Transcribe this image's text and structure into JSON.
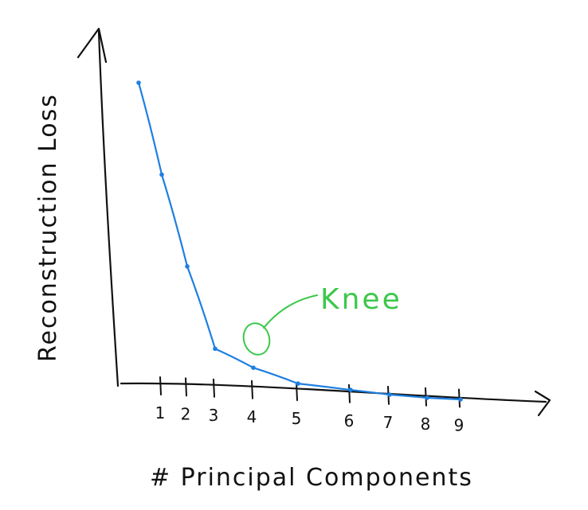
{
  "chart_data": {
    "type": "line",
    "xlabel": "# Principal Components",
    "ylabel": "Reconstruction Loss",
    "x": [
      0,
      1,
      2,
      3,
      4,
      5,
      6,
      7,
      8,
      9
    ],
    "tick_labels": [
      "1",
      "2",
      "3",
      "4",
      "5",
      "6",
      "7",
      "8",
      "9"
    ],
    "series": [
      {
        "values": [
          100,
          71,
          42,
          16,
          10,
          5,
          3,
          1.5,
          0.5,
          0
        ],
        "color": "#1e7fe0"
      }
    ],
    "annotation": {
      "text": "Knee",
      "x": 4,
      "color": "#3cc84a"
    },
    "grid": false,
    "axis_color": "#111111",
    "hand_drawn": true
  }
}
